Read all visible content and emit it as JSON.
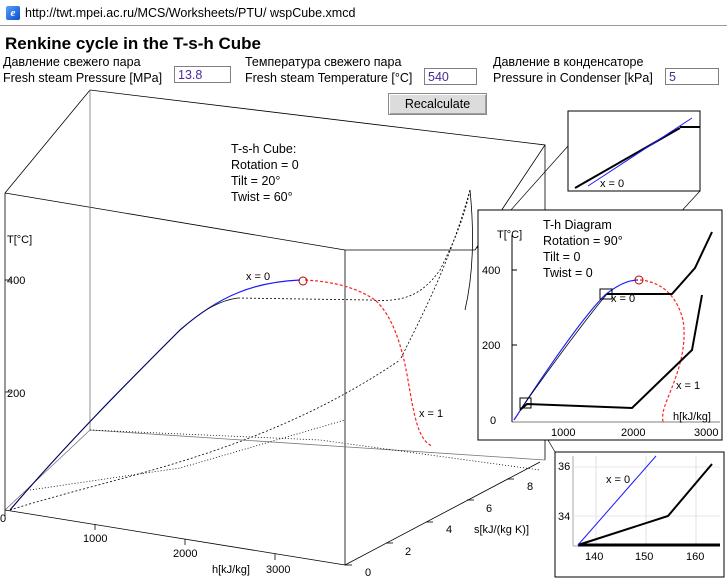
{
  "address_bar": {
    "url": "http://twt.mpei.ac.ru/MCS/Worksheets/PTU/ wspCube.xmcd",
    "icon": "ie-page-icon"
  },
  "page_title": "Renkine cycle in the T-s-h Cube",
  "inputs": {
    "pressure": {
      "label_ru": "Давление свежего пара",
      "label_en": "Fresh steam Pressure [MPa]",
      "value": "13.8"
    },
    "temperature": {
      "label_ru": "Температура свежего пара",
      "label_en": "Fresh steam Temperature [°C]",
      "value": "540"
    },
    "condenser": {
      "label_ru": "Давление в конденсаторе",
      "label_en": "Pressure in Condenser [kPa]",
      "value": "5"
    }
  },
  "recalculate_label": "Recalculate",
  "cube": {
    "info": [
      "T-s-h Cube:",
      "Rotation = 0",
      "Tilt = 20°",
      "Twist = 60°"
    ],
    "t_axis_label": "T[°C]",
    "t_ticks": [
      "400",
      "200"
    ],
    "h_ticks": [
      "0",
      "1000",
      "2000",
      "3000"
    ],
    "h_axis_label": "h[kJ/kg]",
    "s_ticks": [
      "0",
      "2",
      "4",
      "6",
      "8"
    ],
    "s_axis_label": "s[kJ/(kg K)]",
    "x0_label": "x = 0",
    "x1_label": "x = 1"
  },
  "th_diagram": {
    "info": [
      "T-h Diagram",
      "Rotation = 90°",
      "Tilt = 0",
      "Twist = 0"
    ],
    "t_axis_label": "T[°C]",
    "y_ticks": [
      "400",
      "200",
      "0"
    ],
    "x_ticks": [
      "1000",
      "2000",
      "3000"
    ],
    "x_axis_label": "h[kJ/kg]",
    "x0_label": "x = 0",
    "x1_label": "x = 1"
  },
  "zoom_top": {
    "x0_label": "x = 0"
  },
  "zoom_bottom": {
    "y_ticks": [
      "36",
      "34"
    ],
    "x_ticks": [
      "140",
      "150",
      "160"
    ],
    "x0_label": "x = 0"
  },
  "colors": {
    "liquid_line": "#1a1aff",
    "vapor_line": "#ff2222",
    "cycle": "#000000"
  }
}
